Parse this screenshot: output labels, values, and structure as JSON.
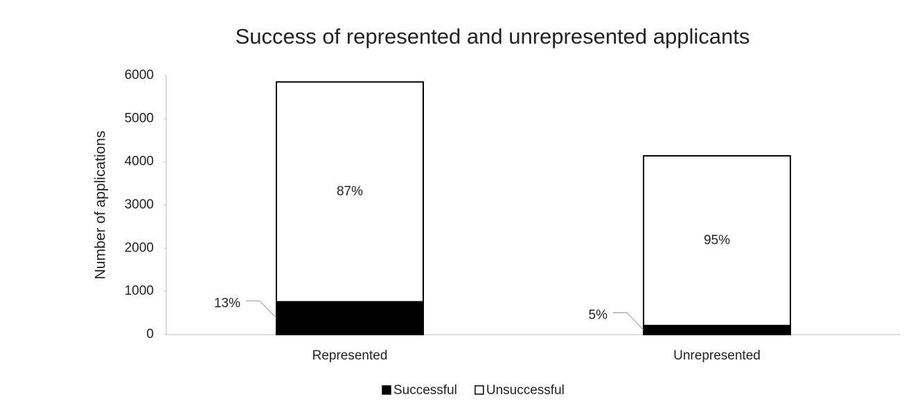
{
  "chart_data": {
    "type": "stacked_bar",
    "title": "Success of represented and unrepresented applicants",
    "y_label": "Number of applications",
    "categories": [
      "Represented",
      "Unrepresented"
    ],
    "series": [
      {
        "name": "Successful",
        "color": "#000000",
        "values": [
          760,
          210
        ],
        "value_labels": [
          "13%",
          "5%"
        ]
      },
      {
        "name": "Unsuccessful",
        "color": "#ffffff",
        "values": [
          5090,
          3930
        ],
        "value_labels": [
          "87%",
          "95%"
        ]
      }
    ],
    "ylim": [
      0,
      6000
    ],
    "yticks": [
      0,
      1000,
      2000,
      3000,
      4000,
      5000,
      6000
    ],
    "legend": "bottom"
  }
}
